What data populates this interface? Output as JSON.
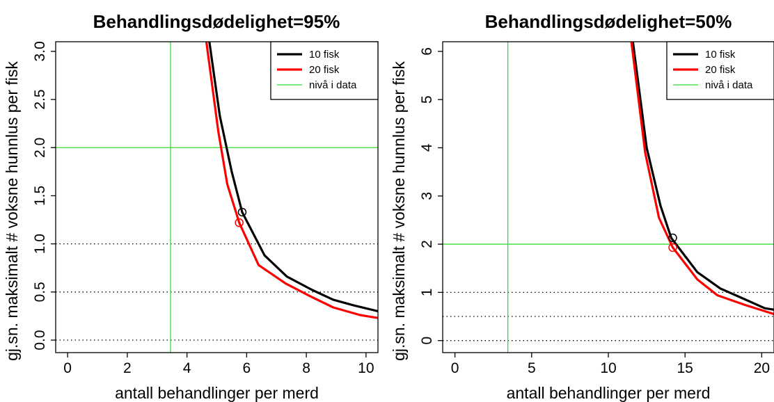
{
  "chart_data": [
    {
      "type": "line",
      "title": "Behandlingsdødelighet=95%",
      "xlabel": "antall behandlinger per merd",
      "ylabel": "gj.sn. maksimalt # voksne hunnlus per fisk",
      "xlim": [
        -0.4,
        10.4
      ],
      "ylim": [
        -0.13,
        3.1
      ],
      "xticks": [
        "0",
        "2",
        "4",
        "6",
        "8",
        "10"
      ],
      "yticks": [
        "0.0",
        "0.5",
        "1.0",
        "1.5",
        "2.0",
        "2.5",
        "3.0"
      ],
      "grid": false,
      "legend_position": "top-right",
      "series": [
        {
          "name": "10 fisk",
          "color": "#000000",
          "x": [
            4.75,
            5.1,
            5.5,
            5.85,
            6.6,
            7.35,
            8.2,
            8.9,
            9.6,
            10.4
          ],
          "y": [
            3.1,
            2.33,
            1.75,
            1.33,
            0.88,
            0.66,
            0.52,
            0.42,
            0.36,
            0.3
          ]
        },
        {
          "name": "20 fisk",
          "color": "#ff0000",
          "x": [
            4.65,
            5.05,
            5.35,
            5.75,
            6.4,
            7.3,
            8.1,
            8.9,
            9.8,
            10.4
          ],
          "y": [
            3.1,
            2.17,
            1.62,
            1.22,
            0.78,
            0.59,
            0.46,
            0.34,
            0.26,
            0.23
          ]
        },
        {
          "name": "nivå i data",
          "color": "#33dd33",
          "vline": 3.45,
          "hline": 2.0
        }
      ],
      "markers": [
        {
          "x": 5.85,
          "y": 1.33,
          "color": "#000000"
        },
        {
          "x": 5.75,
          "y": 1.22,
          "color": "#ff0000"
        }
      ],
      "reference_lines": [
        1.0,
        0.5,
        0.0
      ]
    },
    {
      "type": "line",
      "title": "Behandlingsdødelighet=50%",
      "xlabel": "antall behandlinger per merd",
      "ylabel": "gj.sn. maksimalt # voksne hunnlus per fisk",
      "xlim": [
        -0.8,
        20.8
      ],
      "ylim": [
        -0.25,
        6.2
      ],
      "xticks": [
        "0",
        "5",
        "10",
        "15",
        "20"
      ],
      "yticks": [
        "0",
        "1",
        "2",
        "3",
        "4",
        "5",
        "6"
      ],
      "grid": false,
      "legend_position": "top-right",
      "series": [
        {
          "name": "10 fisk",
          "color": "#000000",
          "x": [
            11.6,
            12.5,
            13.4,
            14.1,
            15.8,
            17.3,
            18.8,
            20.2,
            20.8
          ],
          "y": [
            6.2,
            4.0,
            2.8,
            2.13,
            1.42,
            1.08,
            0.87,
            0.67,
            0.64
          ]
        },
        {
          "name": "20 fisk",
          "color": "#ff0000",
          "x": [
            11.5,
            12.4,
            13.3,
            14.2,
            15.8,
            17.1,
            18.9,
            20.3,
            20.8
          ],
          "y": [
            6.2,
            3.9,
            2.55,
            1.93,
            1.27,
            0.94,
            0.74,
            0.6,
            0.55
          ]
        },
        {
          "name": "nivå i data",
          "color": "#33dd33",
          "vline": 3.45,
          "hline": 2.0
        }
      ],
      "markers": [
        {
          "x": 14.2,
          "y": 2.13,
          "color": "#000000"
        },
        {
          "x": 14.2,
          "y": 1.93,
          "color": "#ff0000"
        }
      ],
      "reference_lines": [
        1.0,
        0.5,
        0.0
      ]
    }
  ]
}
